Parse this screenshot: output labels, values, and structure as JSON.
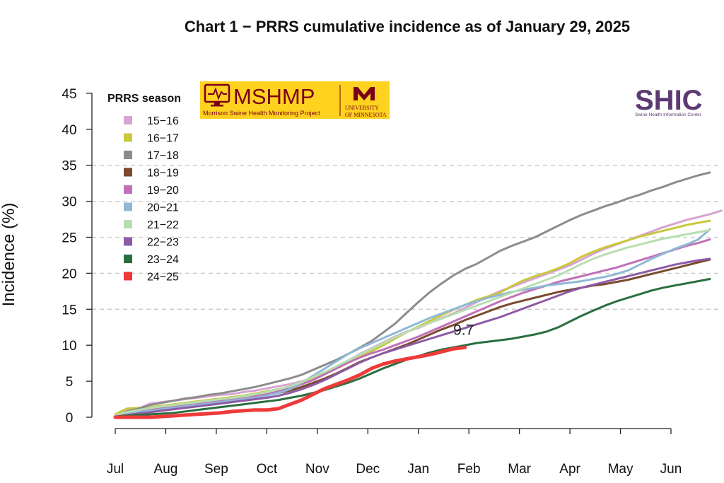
{
  "chart_data": {
    "type": "line",
    "title": "Chart 1 − PRRS cumulative incidence as of January 29, 2025",
    "ylabel": "Incidence (%)",
    "xlabel": "",
    "ylim": [
      0,
      45
    ],
    "yticks": [
      0,
      5,
      10,
      15,
      20,
      25,
      30,
      35,
      40,
      45
    ],
    "x_month_labels": [
      "Jul",
      "Aug",
      "Sep",
      "Oct",
      "Nov",
      "Dec",
      "Jan",
      "Feb",
      "Mar",
      "Apr",
      "May",
      "Jun"
    ],
    "x_unit": "week of PRRS season (week 0 = start of July; months labeled approximately every 4.35 weeks)",
    "grid": "dashed horizontal lines at 15, 20, 25, 30, 35",
    "legend_title": "PRRS season",
    "legend_position": "top-left",
    "annotation": {
      "text": "9.7",
      "x": 30,
      "y": 9.7
    },
    "series": [
      {
        "name": "15−16",
        "color": "#d8a3d3",
        "values": [
          0.3,
          0.9,
          1.2,
          1.9,
          2.1,
          2.3,
          2.5,
          2.7,
          2.9,
          3.1,
          3.2,
          3.5,
          3.7,
          4.0,
          4.3,
          4.6,
          5.0,
          5.5,
          6.2,
          7.0,
          7.9,
          8.8,
          9.6,
          10.4,
          11.2,
          11.9,
          12.4,
          13.1,
          13.8,
          14.4,
          15.2,
          16.0,
          16.8,
          17.5,
          18.1,
          18.7,
          19.3,
          19.9,
          20.5,
          21.1,
          21.9,
          22.7,
          23.4,
          24.0,
          24.6,
          25.2,
          25.8,
          26.4,
          26.9,
          27.4,
          27.8,
          28.2,
          28.7
        ]
      },
      {
        "name": "16−17",
        "color": "#c8c83c",
        "values": [
          0.4,
          1.2,
          1.3,
          1.4,
          1.6,
          1.8,
          2.0,
          2.2,
          2.4,
          2.6,
          2.8,
          3.0,
          3.3,
          3.6,
          3.9,
          4.3,
          4.8,
          5.3,
          6.0,
          6.8,
          7.6,
          8.4,
          9.2,
          10.0,
          10.9,
          11.8,
          12.6,
          13.4,
          14.2,
          14.9,
          15.6,
          16.3,
          16.8,
          17.3,
          18.2,
          19.0,
          19.6,
          20.1,
          20.7,
          21.4,
          22.3,
          23.0,
          23.6,
          24.1,
          24.6,
          25.1,
          25.5,
          25.9,
          26.3,
          26.7,
          27.0,
          27.3
        ]
      },
      {
        "name": "17−18",
        "color": "#8c8c8c",
        "values": [
          0.2,
          0.8,
          1.2,
          1.7,
          2.0,
          2.3,
          2.6,
          2.8,
          3.1,
          3.3,
          3.6,
          3.9,
          4.2,
          4.6,
          5.0,
          5.4,
          5.9,
          6.6,
          7.3,
          8.0,
          8.8,
          9.7,
          10.6,
          11.8,
          13.0,
          14.5,
          16.0,
          17.4,
          18.6,
          19.7,
          20.6,
          21.3,
          22.2,
          23.1,
          23.8,
          24.4,
          25.0,
          25.8,
          26.6,
          27.4,
          28.1,
          28.7,
          29.3,
          29.8,
          30.4,
          30.9,
          31.5,
          32.0,
          32.6,
          33.1,
          33.6,
          34.0
        ]
      },
      {
        "name": "18−19",
        "color": "#7b4a2d",
        "values": [
          0.2,
          0.5,
          0.7,
          1.0,
          1.2,
          1.4,
          1.6,
          1.8,
          2.0,
          2.2,
          2.4,
          2.6,
          2.8,
          3.1,
          3.4,
          3.7,
          4.2,
          4.8,
          5.4,
          6.1,
          6.9,
          7.7,
          8.3,
          8.9,
          9.5,
          10.1,
          10.8,
          11.5,
          12.2,
          12.8,
          13.5,
          14.1,
          14.7,
          15.3,
          15.8,
          16.2,
          16.6,
          17.0,
          17.4,
          17.7,
          18.0,
          18.3,
          18.5,
          18.8,
          19.1,
          19.5,
          19.9,
          20.3,
          20.7,
          21.1,
          21.5,
          21.9
        ]
      },
      {
        "name": "19−20",
        "color": "#c070b8",
        "values": [
          0.2,
          0.5,
          0.8,
          1.0,
          1.2,
          1.4,
          1.6,
          1.8,
          2.0,
          2.2,
          2.4,
          2.6,
          2.9,
          3.2,
          3.6,
          4.0,
          4.6,
          5.2,
          6.0,
          6.8,
          7.6,
          8.3,
          8.9,
          9.4,
          10.0,
          10.6,
          11.2,
          11.9,
          12.6,
          13.3,
          14.0,
          14.7,
          15.4,
          16.1,
          16.7,
          17.3,
          17.8,
          18.3,
          18.8,
          19.2,
          19.6,
          20.0,
          20.4,
          20.8,
          21.3,
          21.8,
          22.3,
          22.8,
          23.3,
          23.8,
          24.2,
          24.7
        ]
      },
      {
        "name": "20−21",
        "color": "#8fb9d6",
        "values": [
          0.1,
          0.4,
          0.7,
          0.9,
          1.1,
          1.3,
          1.5,
          1.7,
          1.9,
          2.1,
          2.3,
          2.5,
          2.7,
          3.0,
          3.4,
          3.9,
          4.8,
          5.8,
          6.8,
          7.8,
          8.8,
          9.6,
          10.3,
          11.0,
          11.7,
          12.4,
          13.1,
          13.8,
          14.4,
          15.0,
          15.6,
          16.1,
          16.6,
          17.0,
          17.4,
          17.7,
          18.0,
          18.3,
          18.5,
          18.7,
          18.9,
          19.2,
          19.5,
          19.9,
          20.4,
          21.2,
          22.0,
          22.7,
          23.4,
          24.0,
          24.7,
          26.1
        ]
      },
      {
        "name": "21−22",
        "color": "#b7deb0",
        "values": [
          0.3,
          0.7,
          1.0,
          1.3,
          1.5,
          1.7,
          1.9,
          2.1,
          2.3,
          2.5,
          2.7,
          2.9,
          3.2,
          3.5,
          3.9,
          4.3,
          4.9,
          5.6,
          6.3,
          7.1,
          7.9,
          8.7,
          9.5,
          10.3,
          11.1,
          11.8,
          12.5,
          13.1,
          13.7,
          14.3,
          14.9,
          15.5,
          16.1,
          16.7,
          17.3,
          17.9,
          18.5,
          19.1,
          19.7,
          20.5,
          21.3,
          22.0,
          22.6,
          23.1,
          23.6,
          24.0,
          24.4,
          24.8,
          25.1,
          25.4,
          25.7,
          26.0
        ]
      },
      {
        "name": "22−23",
        "color": "#8d5aa6",
        "values": [
          0.1,
          0.3,
          0.5,
          0.7,
          0.9,
          1.1,
          1.3,
          1.5,
          1.7,
          1.9,
          2.1,
          2.3,
          2.5,
          2.7,
          3.0,
          3.4,
          3.9,
          4.5,
          5.2,
          6.0,
          6.8,
          7.6,
          8.3,
          8.9,
          9.4,
          9.9,
          10.4,
          10.9,
          11.4,
          11.9,
          12.4,
          12.9,
          13.4,
          13.9,
          14.5,
          15.1,
          15.7,
          16.3,
          16.9,
          17.5,
          18.0,
          18.4,
          18.8,
          19.2,
          19.6,
          20.0,
          20.4,
          20.8,
          21.2,
          21.5,
          21.8,
          22.0
        ]
      },
      {
        "name": "23−24",
        "color": "#2a6e3f",
        "values": [
          0.1,
          0.2,
          0.3,
          0.4,
          0.5,
          0.6,
          0.8,
          1.0,
          1.2,
          1.4,
          1.6,
          1.8,
          2.0,
          2.2,
          2.4,
          2.7,
          3.0,
          3.4,
          3.8,
          4.3,
          4.8,
          5.4,
          6.1,
          6.8,
          7.4,
          8.0,
          8.5,
          9.0,
          9.4,
          9.7,
          10.0,
          10.3,
          10.5,
          10.7,
          10.9,
          11.2,
          11.5,
          11.9,
          12.5,
          13.3,
          14.1,
          14.8,
          15.5,
          16.1,
          16.6,
          17.1,
          17.6,
          18.0,
          18.3,
          18.6,
          18.9,
          19.2
        ]
      },
      {
        "name": "24−25",
        "color": "#ef3a3a",
        "values": [
          0.0,
          0.0,
          0.0,
          0.0,
          0.1,
          0.2,
          0.3,
          0.4,
          0.5,
          0.6,
          0.8,
          0.9,
          1.0,
          1.0,
          1.2,
          1.8,
          2.4,
          3.2,
          4.0,
          4.6,
          5.2,
          5.9,
          6.8,
          7.4,
          7.8,
          8.1,
          8.4,
          8.7,
          9.1,
          9.5,
          9.7
        ]
      }
    ]
  },
  "legend": {
    "title": "PRRS season",
    "items": [
      "15−16",
      "16−17",
      "17−18",
      "18−19",
      "19−20",
      "20−21",
      "21−22",
      "22−23",
      "23−24",
      "24−25"
    ]
  },
  "logos": {
    "mshmp": {
      "wordmark": "MSHMP",
      "subtitle": "Morrison Swine Health Monitoring Project",
      "university_line1": "UNIVERSITY",
      "university_line2": "OF MINNESOTA",
      "bg_color": "#ffd21f",
      "fg_color": "#7a0019"
    },
    "shic": {
      "wordmark": "SHIC",
      "subtitle": "Swine Health Information Center",
      "color": "#5b3b71"
    }
  }
}
